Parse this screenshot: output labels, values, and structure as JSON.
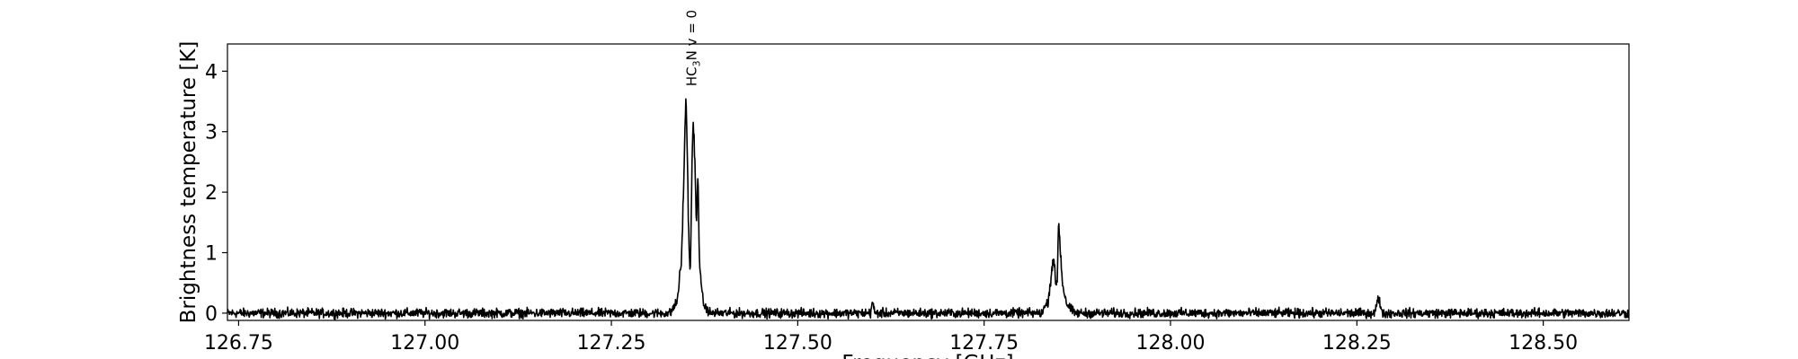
{
  "chart_data": {
    "type": "line",
    "title": "",
    "xlabel": "Frequency [GHz]",
    "ylabel": "Brightness temperature [K]",
    "xlim": [
      126.735,
      128.615
    ],
    "ylim": [
      -0.12,
      4.45
    ],
    "xticks": [
      126.75,
      127.0,
      127.25,
      127.5,
      127.75,
      128.0,
      128.25,
      128.5
    ],
    "xtick_labels": [
      "126.75",
      "127.00",
      "127.25",
      "127.50",
      "127.75",
      "128.00",
      "128.25",
      "128.50"
    ],
    "yticks": [
      0,
      1,
      2,
      3,
      4
    ],
    "ytick_labels": [
      "0",
      "1",
      "2",
      "3",
      "4"
    ],
    "grid": false,
    "line_color": "#000000",
    "annotation": {
      "text_parts": [
        "HC",
        "3",
        "N v = 0"
      ],
      "x": 127.358,
      "y": 3.75
    },
    "series": [
      {
        "x": [
          127.33,
          127.338,
          127.344,
          127.348,
          127.35,
          127.352,
          127.354,
          127.356,
          127.358,
          127.36,
          127.362,
          127.364,
          127.366,
          127.368,
          127.371,
          127.375,
          127.382,
          127.598,
          127.6,
          127.603,
          127.828,
          127.836,
          127.841,
          127.843,
          127.846,
          127.848,
          127.85,
          127.852,
          127.855,
          127.858,
          127.862,
          127.87,
          128.274,
          128.279,
          128.284
        ],
        "y": [
          0.03,
          0.18,
          0.85,
          2.6,
          3.65,
          2.55,
          1.1,
          0.7,
          2.4,
          3.2,
          2.5,
          1.4,
          2.3,
          1.0,
          0.35,
          0.1,
          0.02,
          0.02,
          0.2,
          0.02,
          0.03,
          0.2,
          0.75,
          0.95,
          0.45,
          0.55,
          1.55,
          1.1,
          0.5,
          0.3,
          0.12,
          0.02,
          0.02,
          0.25,
          0.03
        ],
        "noise_amplitude": 0.1
      }
    ]
  }
}
